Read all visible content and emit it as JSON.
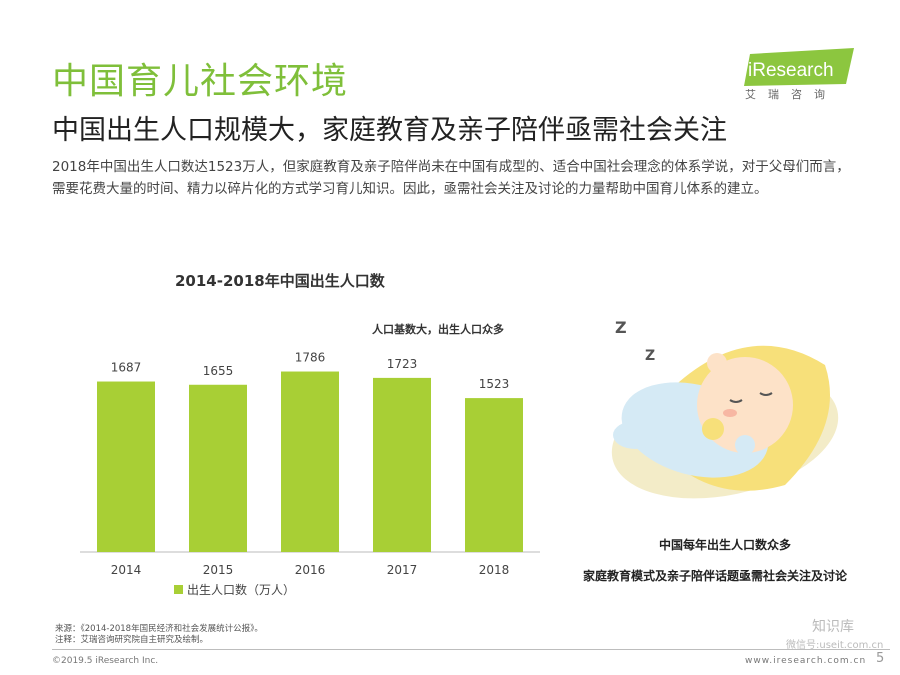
{
  "header": {
    "title": "中国育儿社会环境",
    "subtitle": "中国出生人口规模大，家庭教育及亲子陪伴亟需社会关注",
    "body": "2018年中国出生人口数达1523万人，但家庭教育及亲子陪伴尚未在中国有成型的、适合中国社会理念的体系学说，对于父母们而言，需要花费大量的时间、精力以碎片化的方式学习育儿知识。因此，亟需社会关注及讨论的力量帮助中国育儿体系的建立。"
  },
  "logo": {
    "text": "iResearch",
    "cn": "艾瑞咨询",
    "color": "#8cc63f"
  },
  "annotation": "人口基数大，出生人口众多",
  "illustration": {
    "caption1": "中国每年出生人口数众多",
    "caption2": "家庭教育模式及亲子陪伴话题亟需社会关注及讨论"
  },
  "chart_data": {
    "type": "bar",
    "title": "2014-2018年中国出生人口数",
    "categories": [
      "2014",
      "2015",
      "2016",
      "2017",
      "2018"
    ],
    "series": [
      {
        "name": "出生人口数（万人）",
        "values": [
          1687,
          1655,
          1786,
          1723,
          1523
        ],
        "color": "#a8cf35"
      }
    ],
    "ylim": [
      0,
      1900
    ],
    "legend_position": "bottom-left",
    "grid": false
  },
  "footer": {
    "source": "来源：《2014-2018年国民经济和社会发展统计公报》。",
    "note": "注释：艾瑞咨询研究院自主研究及绘制。",
    "copyright": "©2019.5 iResearch Inc.",
    "website": "www.iresearch.com.cn",
    "page": "5",
    "watermark1": "知识库",
    "watermark2": "微信号:useit.com.cn"
  }
}
